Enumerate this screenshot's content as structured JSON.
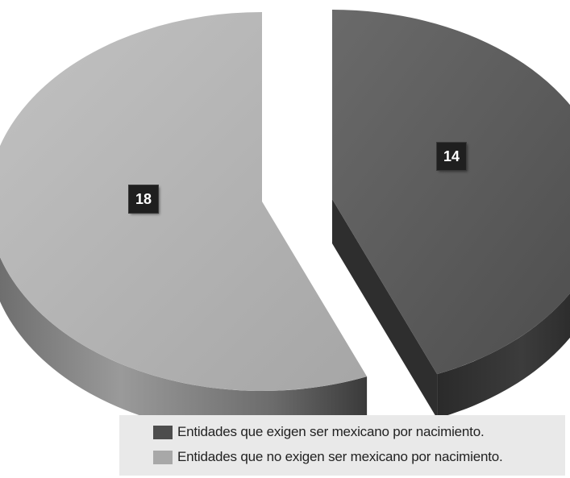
{
  "chart_data": {
    "type": "pie",
    "title": "",
    "categories": [
      "Entidades que exigen ser mexicano por nacimiento.",
      "Entidades que no exigen ser mexicano por nacimiento."
    ],
    "values": [
      14,
      18
    ],
    "labels": [
      "14",
      "18"
    ],
    "colors": [
      "#5a5a5a",
      "#b2b2b2"
    ],
    "legend_position": "bottom-right",
    "style": "3d-exploded"
  },
  "legend": {
    "items": [
      {
        "label": "Entidades que exigen ser mexicano por nacimiento.",
        "color": "#4d4d4d"
      },
      {
        "label": "Entidades que no exigen ser mexicano por nacimiento.",
        "color": "#a8a8a8"
      }
    ]
  }
}
